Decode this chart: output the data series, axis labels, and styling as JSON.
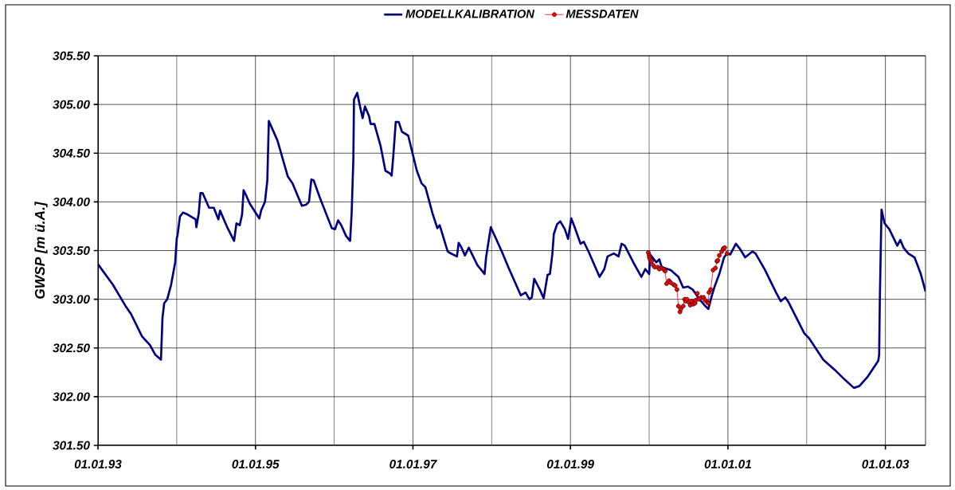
{
  "chart_data": {
    "type": "line",
    "ylabel": "GWSP [m ü.A.]",
    "xlim": [
      "1993-01-01",
      "2003-07-06"
    ],
    "ylim": [
      301.5,
      305.5
    ],
    "xticks": [
      {
        "value": "1993-01-01",
        "label": "01.01.93"
      },
      {
        "value": "1994-01-01",
        "label": null
      },
      {
        "value": "1995-01-01",
        "label": "01.01.95"
      },
      {
        "value": "1996-01-01",
        "label": null
      },
      {
        "value": "1997-01-01",
        "label": "01.01.97"
      },
      {
        "value": "1998-01-01",
        "label": null
      },
      {
        "value": "1999-01-01",
        "label": "01.01.99"
      },
      {
        "value": "2000-01-01",
        "label": null
      },
      {
        "value": "2001-01-01",
        "label": "01.01.01"
      },
      {
        "value": "2002-01-01",
        "label": null
      },
      {
        "value": "2003-01-01",
        "label": "01.01.03"
      }
    ],
    "yticks": [
      {
        "value": 301.5,
        "label": "301.50"
      },
      {
        "value": 302,
        "label": "302.00"
      },
      {
        "value": 302.5,
        "label": "302.50"
      },
      {
        "value": 303,
        "label": "303.00"
      },
      {
        "value": 303.5,
        "label": "303.50"
      },
      {
        "value": 304,
        "label": "304.00"
      },
      {
        "value": 304.5,
        "label": "304.50"
      },
      {
        "value": 305,
        "label": "305.00"
      },
      {
        "value": 305.5,
        "label": "305.50"
      }
    ],
    "grid": true,
    "legend": "top",
    "series": [
      {
        "name": "MODELLKALIBRATION",
        "color": "#000080",
        "marker": "none",
        "x": [
          "1993-01-01",
          "1993-03-11",
          "1993-05-09",
          "1993-06-03",
          "1993-07-24",
          "1993-08-30",
          "1993-09-24",
          "1993-10-20",
          "1993-10-27",
          "1993-11-04",
          "1993-11-18",
          "1993-12-06",
          "1993-12-25",
          "1994-01-01",
          "1994-01-05",
          "1994-01-16",
          "1994-01-30",
          "1994-02-21",
          "1994-03-30",
          "1994-04-02",
          "1994-04-13",
          "1994-04-21",
          "1994-05-01",
          "1994-05-31",
          "1994-06-22",
          "1994-07-13",
          "1994-07-21",
          "1994-08-23",
          "1994-09-24",
          "1994-10-05",
          "1994-10-20",
          "1994-10-31",
          "1994-11-07",
          "1994-11-18",
          "1994-12-06",
          "1995-01-19",
          "1995-01-27",
          "1995-02-14",
          "1995-02-25",
          "1995-03-04",
          "1995-03-22",
          "1995-04-13",
          "1995-05-31",
          "1995-06-22",
          "1995-08-04",
          "1995-08-23",
          "1995-09-06",
          "1995-09-17",
          "1995-09-28",
          "1995-10-27",
          "1995-12-21",
          "1996-01-05",
          "1996-01-19",
          "1996-02-03",
          "1996-02-25",
          "1996-03-15",
          "1996-03-22",
          "1996-03-30",
          "1996-04-02",
          "1996-04-17",
          "1996-04-28",
          "1996-05-12",
          "1996-05-23",
          "1996-06-11",
          "1996-06-18",
          "1996-07-06",
          "1996-08-04",
          "1996-08-26",
          "1996-09-17",
          "1996-09-24",
          "1996-10-02",
          "1996-10-13",
          "1996-10-27",
          "1996-11-11",
          "1996-12-10",
          "1997-01-19",
          "1997-02-10",
          "1997-02-28",
          "1997-04-02",
          "1997-04-24",
          "1997-05-05",
          "1997-06-11",
          "1997-06-18",
          "1997-07-24",
          "1997-08-01",
          "1997-08-12",
          "1997-08-30",
          "1997-09-17",
          "1997-10-27",
          "1997-11-29",
          "1997-12-06",
          "1997-12-28",
          "1998-01-05",
          "1998-02-17",
          "1998-03-19",
          "1998-05-16",
          "1998-06-07",
          "1998-06-25",
          "1998-07-06",
          "1998-07-17",
          "1998-08-12",
          "1998-08-30",
          "1998-09-17",
          "1998-09-28",
          "1998-10-09",
          "1998-10-16",
          "1998-10-31",
          "1998-11-15",
          "1998-12-06",
          "1998-12-21",
          "1999-01-05",
          "1999-01-19",
          "1999-02-17",
          "1999-03-04",
          "1999-03-26",
          "1999-05-16",
          "1999-06-07",
          "1999-06-22",
          "1999-07-21",
          "1999-08-12",
          "1999-08-26",
          "1999-09-10",
          "1999-10-24",
          "1999-11-26",
          "1999-12-14",
          "2000-01-01",
          "2000-01-05",
          "2000-02-03",
          "2000-02-17",
          "2000-02-28",
          "2000-04-10",
          "2000-05-16",
          "2000-06-07",
          "2000-06-29",
          "2000-07-21",
          "2000-08-26",
          "2000-09-14",
          "2000-10-02",
          "2000-10-16",
          "2000-10-31",
          "2000-11-22",
          "2000-12-14",
          "2000-12-28",
          "2001-01-12",
          "2001-02-07",
          "2001-02-25",
          "2001-03-22",
          "2001-04-24",
          "2001-05-09",
          "2001-06-22",
          "2001-08-12",
          "2001-09-03",
          "2001-09-24",
          "2001-10-09",
          "2001-12-21",
          "2002-01-12",
          "2002-03-19",
          "2002-05-09",
          "2002-06-29",
          "2002-08-08",
          "2002-09-03",
          "2002-10-09",
          "2002-11-29",
          "2002-12-03",
          "2002-12-06",
          "2002-12-10",
          "2002-12-14",
          "2002-12-28",
          "2003-01-19",
          "2003-02-25",
          "2003-03-11",
          "2003-03-26",
          "2003-04-17",
          "2003-05-16",
          "2003-06-14",
          "2003-07-06"
        ],
        "values": [
          303.36,
          303.15,
          302.93,
          302.85,
          302.62,
          302.53,
          302.43,
          302.38,
          302.81,
          302.96,
          303.0,
          303.15,
          303.38,
          303.62,
          303.66,
          303.85,
          303.89,
          303.87,
          303.82,
          303.74,
          303.88,
          304.09,
          304.09,
          303.94,
          303.94,
          303.82,
          303.91,
          303.74,
          303.6,
          303.78,
          303.76,
          303.87,
          304.12,
          304.07,
          303.98,
          303.83,
          303.91,
          304.0,
          304.22,
          304.83,
          304.74,
          304.63,
          304.26,
          304.19,
          303.96,
          303.97,
          304.0,
          304.23,
          304.22,
          304.04,
          303.73,
          303.72,
          303.81,
          303.76,
          303.65,
          303.6,
          303.88,
          304.44,
          305.05,
          305.12,
          305.0,
          304.86,
          304.98,
          304.88,
          304.8,
          304.8,
          304.57,
          304.32,
          304.29,
          304.27,
          304.48,
          304.82,
          304.82,
          304.72,
          304.68,
          304.32,
          304.19,
          304.15,
          303.88,
          303.73,
          303.76,
          303.49,
          303.48,
          303.44,
          303.58,
          303.54,
          303.45,
          303.53,
          303.35,
          303.26,
          303.43,
          303.74,
          303.7,
          303.49,
          303.33,
          303.04,
          303.07,
          303.0,
          303.02,
          303.21,
          303.1,
          303.01,
          303.25,
          303.26,
          303.46,
          303.67,
          303.77,
          303.8,
          303.72,
          303.62,
          303.83,
          303.75,
          303.57,
          303.59,
          303.49,
          303.23,
          303.31,
          303.44,
          303.47,
          303.44,
          303.57,
          303.55,
          303.36,
          303.23,
          303.31,
          303.26,
          303.46,
          303.38,
          303.41,
          303.33,
          303.3,
          303.23,
          303.12,
          303.13,
          303.1,
          302.99,
          302.94,
          302.9,
          303.02,
          303.13,
          303.26,
          303.43,
          303.47,
          303.46,
          303.57,
          303.52,
          303.43,
          303.49,
          303.47,
          303.3,
          303.07,
          302.98,
          303.02,
          302.97,
          302.65,
          302.6,
          302.38,
          302.28,
          302.17,
          302.09,
          302.11,
          302.2,
          302.37,
          302.43,
          302.97,
          303.46,
          303.92,
          303.78,
          303.72,
          303.55,
          303.61,
          303.53,
          303.47,
          303.43,
          303.26,
          303.08
        ]
      },
      {
        "name": "MESSDATEN",
        "color": "#ff0000",
        "marker": "circle",
        "x": [
          "1999-12-28",
          "2000-01-01",
          "2000-01-02",
          "2000-01-05",
          "2000-01-12",
          "2000-01-19",
          "2000-01-27",
          "2000-02-10",
          "2000-02-17",
          "2000-02-28",
          "2000-03-08",
          "2000-03-15",
          "2000-03-22",
          "2000-04-02",
          "2000-04-10",
          "2000-04-24",
          "2000-05-01",
          "2000-05-09",
          "2000-05-16",
          "2000-05-23",
          "2000-05-27",
          "2000-06-07",
          "2000-06-14",
          "2000-06-18",
          "2000-06-25",
          "2000-07-03",
          "2000-07-10",
          "2000-07-17",
          "2000-07-24",
          "2000-08-01",
          "2000-08-04",
          "2000-08-12",
          "2000-08-19",
          "2000-08-30",
          "2000-09-10",
          "2000-09-17",
          "2000-09-28",
          "2000-10-02",
          "2000-10-05",
          "2000-10-13",
          "2000-10-24",
          "2000-11-04",
          "2000-11-11",
          "2000-11-15",
          "2000-11-22",
          "2000-12-03",
          "2000-12-10",
          "2000-12-17",
          "2000-12-28"
        ],
        "values": [
          303.48,
          303.45,
          303.43,
          303.41,
          303.39,
          303.35,
          303.33,
          303.33,
          303.31,
          303.32,
          303.31,
          303.29,
          303.16,
          303.19,
          303.17,
          303.15,
          303.14,
          303.1,
          302.93,
          302.87,
          302.9,
          302.93,
          303.0,
          302.98,
          303.0,
          302.97,
          302.94,
          302.98,
          302.95,
          302.96,
          302.99,
          303.06,
          303.0,
          303.02,
          303.02,
          302.99,
          302.97,
          302.96,
          303.07,
          303.1,
          303.3,
          303.32,
          303.39,
          303.4,
          303.45,
          303.49,
          303.52,
          303.53,
          303.47
        ]
      }
    ]
  }
}
